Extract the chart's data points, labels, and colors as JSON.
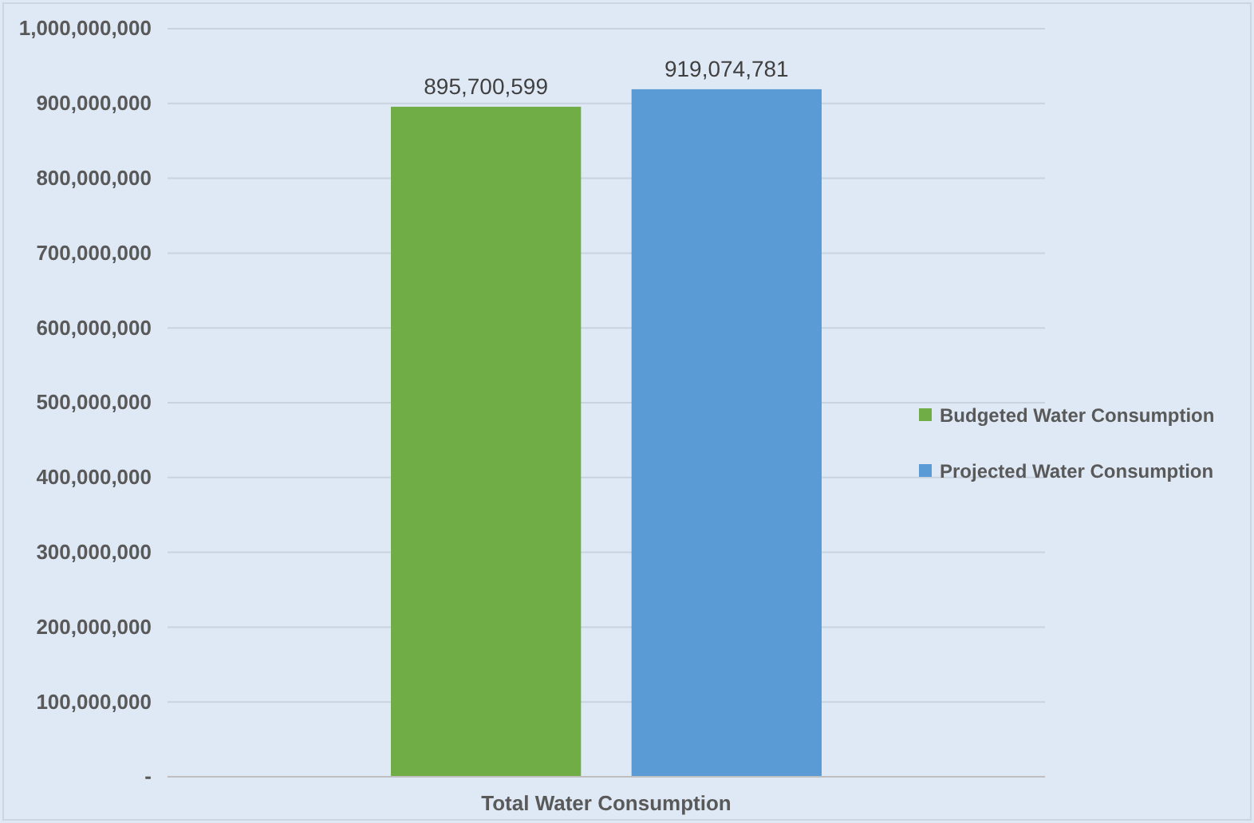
{
  "chart_data": {
    "type": "bar",
    "categories": [
      "Total Water Consumption"
    ],
    "series": [
      {
        "name": "Budgeted Water Consumption",
        "color": "#70ad47",
        "values": [
          895700599
        ],
        "value_labels": [
          "895,700,599"
        ]
      },
      {
        "name": "Projected Water Consumption",
        "color": "#5b9bd5",
        "values": [
          919074781
        ],
        "value_labels": [
          "919,074,781"
        ]
      }
    ],
    "ylim": [
      0,
      1000000000
    ],
    "yticks": [
      {
        "value": 0,
        "label": "-"
      },
      {
        "value": 100000000,
        "label": "100,000,000"
      },
      {
        "value": 200000000,
        "label": "200,000,000"
      },
      {
        "value": 300000000,
        "label": "300,000,000"
      },
      {
        "value": 400000000,
        "label": "400,000,000"
      },
      {
        "value": 500000000,
        "label": "500,000,000"
      },
      {
        "value": 600000000,
        "label": "600,000,000"
      },
      {
        "value": 700000000,
        "label": "700,000,000"
      },
      {
        "value": 800000000,
        "label": "800,000,000"
      },
      {
        "value": 900000000,
        "label": "900,000,000"
      },
      {
        "value": 1000000000,
        "label": "1,000,000,000"
      }
    ],
    "grid": "y",
    "legend": "right"
  }
}
